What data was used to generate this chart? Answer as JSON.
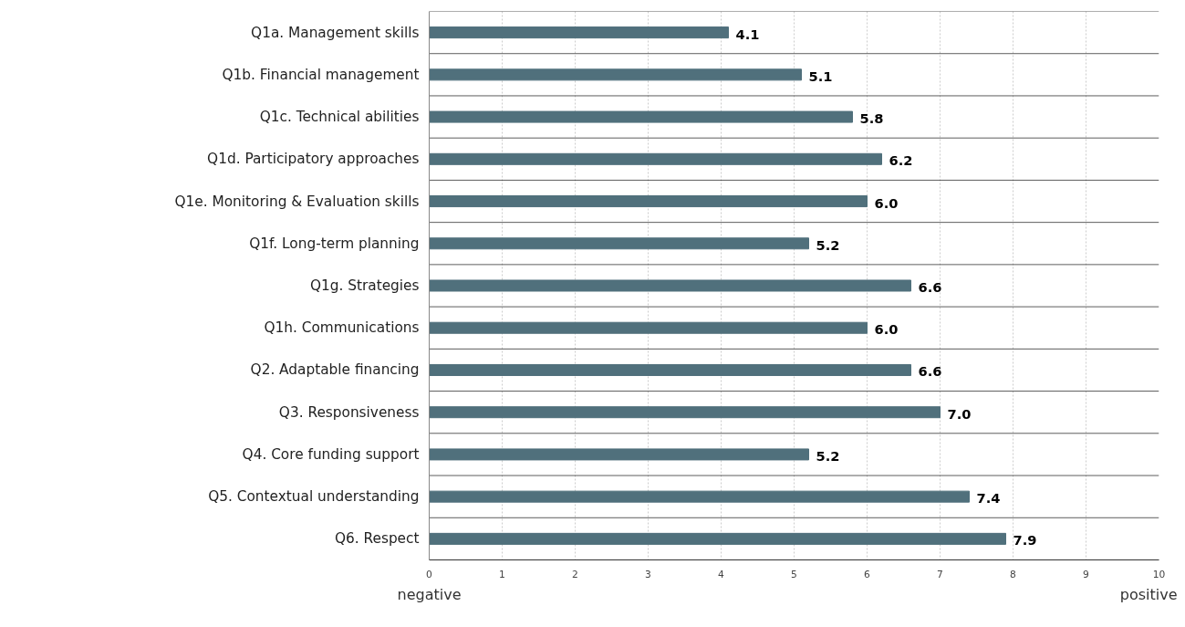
{
  "chart_data": {
    "type": "bar",
    "orientation": "horizontal",
    "categories": [
      "Q1a. Management skills",
      "Q1b. Financial management",
      "Q1c. Technical abilities",
      "Q1d. Participatory approaches",
      "Q1e. Monitoring & Evaluation skills",
      "Q1f. Long-term planning",
      "Q1g. Strategies",
      "Q1h. Communications",
      "Q2. Adaptable financing",
      "Q3. Responsiveness",
      "Q4. Core funding support",
      "Q5. Contextual understanding",
      "Q6. Respect"
    ],
    "values": [
      4.1,
      5.1,
      5.8,
      6.2,
      6.0,
      5.2,
      6.6,
      6.0,
      6.6,
      7.0,
      5.2,
      7.4,
      7.9
    ],
    "color": "#50707c",
    "xlim": [
      0,
      10
    ],
    "xticks": [
      0,
      1,
      2,
      3,
      4,
      5,
      6,
      7,
      8,
      9,
      10
    ],
    "value_labels": [
      "4.1",
      "5.1",
      "5.8",
      "6.2",
      "6.0",
      "5.2",
      "6.6",
      "6.0",
      "6.6",
      "7.0",
      "5.2",
      "7.4",
      "7.9"
    ],
    "grid": "x",
    "annotations": [
      "negative",
      "positive"
    ]
  }
}
